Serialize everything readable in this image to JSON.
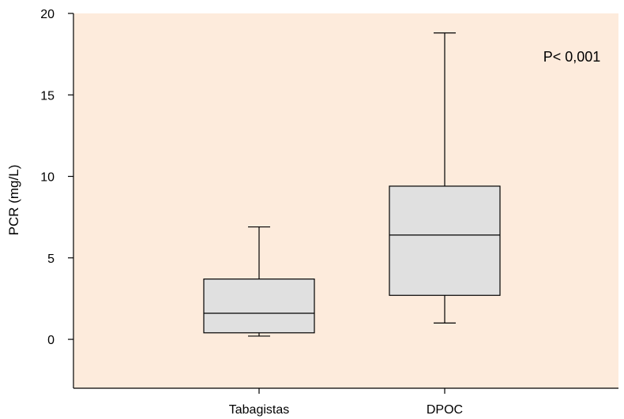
{
  "colors": {
    "plot_background": "#FDEBDC",
    "box_fill": "#E0E0E0",
    "line": "#000000"
  },
  "chart_data": {
    "type": "boxplot",
    "title": "",
    "xlabel": "",
    "ylabel": "PCR (mg/L)",
    "ylim": [
      -3,
      20
    ],
    "yticks": [
      0,
      5,
      10,
      15,
      20
    ],
    "grid": false,
    "categories": [
      "Tabagistas",
      "DPOC"
    ],
    "boxes": [
      {
        "category": "Tabagistas",
        "whisker_low": 0.2,
        "q1": 0.4,
        "median": 1.6,
        "q3": 3.7,
        "whisker_high": 6.9
      },
      {
        "category": "DPOC",
        "whisker_low": 1.0,
        "q1": 2.7,
        "median": 6.4,
        "q3": 9.4,
        "whisker_high": 18.8
      }
    ],
    "annotations": [
      {
        "text": "P< 0,001",
        "position": "top-right"
      }
    ]
  }
}
